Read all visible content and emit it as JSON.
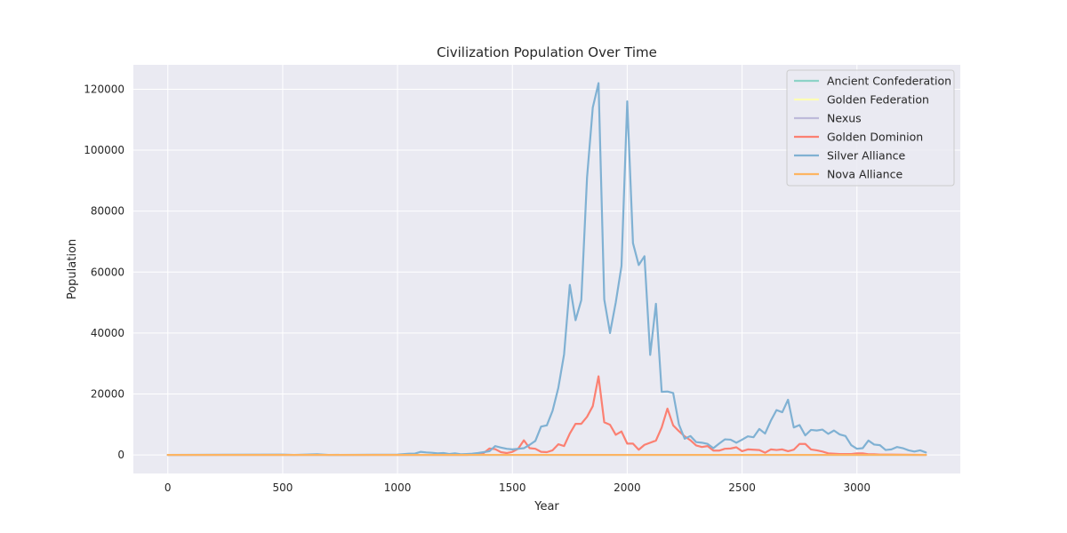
{
  "chart_data": {
    "type": "line",
    "title": "Civilization Population Over Time",
    "xlabel": "Year",
    "ylabel": "Population",
    "xlim": [
      -150,
      3450
    ],
    "ylim": [
      -6100,
      128000
    ],
    "xticks": [
      0,
      500,
      1000,
      1500,
      2000,
      2500,
      3000
    ],
    "yticks": [
      0,
      20000,
      40000,
      60000,
      80000,
      100000,
      120000
    ],
    "grid": true,
    "legend_position": "top-right",
    "plot_background": "#EAEAF2",
    "series": [
      {
        "name": "Ancient Confederation",
        "color": "#8DD3C7",
        "points": [
          [
            0,
            0
          ],
          [
            3300,
            0
          ]
        ]
      },
      {
        "name": "Golden Federation",
        "color": "#FFFFB3",
        "points": [
          [
            0,
            0
          ],
          [
            3300,
            0
          ]
        ]
      },
      {
        "name": "Nexus",
        "color": "#BEBADA",
        "points": [
          [
            0,
            0
          ],
          [
            3300,
            0
          ]
        ]
      },
      {
        "name": "Golden Dominion",
        "color": "#FB8072",
        "points": [
          [
            0,
            0
          ],
          [
            1300,
            0
          ],
          [
            1325,
            100
          ],
          [
            1350,
            300
          ],
          [
            1375,
            600
          ],
          [
            1400,
            2100
          ],
          [
            1425,
            1900
          ],
          [
            1450,
            900
          ],
          [
            1475,
            600
          ],
          [
            1500,
            1000
          ],
          [
            1525,
            2000
          ],
          [
            1550,
            4800
          ],
          [
            1575,
            2200
          ],
          [
            1600,
            2000
          ],
          [
            1625,
            1000
          ],
          [
            1650,
            900
          ],
          [
            1675,
            1500
          ],
          [
            1700,
            3500
          ],
          [
            1725,
            2900
          ],
          [
            1750,
            7000
          ],
          [
            1775,
            10200
          ],
          [
            1800,
            10200
          ],
          [
            1825,
            12500
          ],
          [
            1850,
            16000
          ],
          [
            1875,
            25800
          ],
          [
            1900,
            10700
          ],
          [
            1925,
            9900
          ],
          [
            1950,
            6600
          ],
          [
            1975,
            7700
          ],
          [
            2000,
            3700
          ],
          [
            2025,
            3700
          ],
          [
            2050,
            1700
          ],
          [
            2075,
            3300
          ],
          [
            2100,
            4000
          ],
          [
            2125,
            4700
          ],
          [
            2150,
            9000
          ],
          [
            2175,
            15200
          ],
          [
            2200,
            9700
          ],
          [
            2225,
            7800
          ],
          [
            2250,
            6100
          ],
          [
            2275,
            4800
          ],
          [
            2300,
            3100
          ],
          [
            2325,
            2600
          ],
          [
            2350,
            2900
          ],
          [
            2375,
            1400
          ],
          [
            2400,
            1400
          ],
          [
            2425,
            2000
          ],
          [
            2450,
            2100
          ],
          [
            2475,
            2500
          ],
          [
            2500,
            1200
          ],
          [
            2525,
            1800
          ],
          [
            2550,
            1700
          ],
          [
            2575,
            1600
          ],
          [
            2600,
            700
          ],
          [
            2625,
            1800
          ],
          [
            2650,
            1600
          ],
          [
            2675,
            1800
          ],
          [
            2700,
            1200
          ],
          [
            2725,
            1700
          ],
          [
            2750,
            3600
          ],
          [
            2775,
            3600
          ],
          [
            2800,
            1800
          ],
          [
            2825,
            1500
          ],
          [
            2850,
            1100
          ],
          [
            2875,
            500
          ],
          [
            2900,
            400
          ],
          [
            2925,
            300
          ],
          [
            2950,
            300
          ],
          [
            2975,
            300
          ],
          [
            3000,
            500
          ],
          [
            3025,
            500
          ],
          [
            3050,
            200
          ],
          [
            3075,
            200
          ],
          [
            3100,
            100
          ],
          [
            3150,
            100
          ],
          [
            3200,
            50
          ],
          [
            3300,
            0
          ]
        ]
      },
      {
        "name": "Silver Alliance",
        "color": "#80B1D3",
        "points": [
          [
            0,
            0
          ],
          [
            500,
            100
          ],
          [
            550,
            0
          ],
          [
            650,
            200
          ],
          [
            700,
            0
          ],
          [
            900,
            50
          ],
          [
            1000,
            100
          ],
          [
            1050,
            400
          ],
          [
            1075,
            400
          ],
          [
            1100,
            1000
          ],
          [
            1125,
            800
          ],
          [
            1150,
            700
          ],
          [
            1175,
            500
          ],
          [
            1200,
            600
          ],
          [
            1225,
            300
          ],
          [
            1250,
            500
          ],
          [
            1275,
            200
          ],
          [
            1300,
            300
          ],
          [
            1325,
            400
          ],
          [
            1350,
            600
          ],
          [
            1375,
            900
          ],
          [
            1400,
            1200
          ],
          [
            1425,
            2900
          ],
          [
            1450,
            2400
          ],
          [
            1475,
            2000
          ],
          [
            1500,
            1800
          ],
          [
            1525,
            2000
          ],
          [
            1550,
            2200
          ],
          [
            1575,
            3300
          ],
          [
            1600,
            4600
          ],
          [
            1625,
            9300
          ],
          [
            1650,
            9700
          ],
          [
            1675,
            14500
          ],
          [
            1700,
            22000
          ],
          [
            1725,
            33000
          ],
          [
            1750,
            55800
          ],
          [
            1775,
            44200
          ],
          [
            1800,
            50800
          ],
          [
            1825,
            91000
          ],
          [
            1850,
            114000
          ],
          [
            1875,
            122000
          ],
          [
            1900,
            51000
          ],
          [
            1925,
            40000
          ],
          [
            1950,
            50000
          ],
          [
            1975,
            62000
          ],
          [
            2000,
            116000
          ],
          [
            2025,
            69500
          ],
          [
            2050,
            62300
          ],
          [
            2075,
            65200
          ],
          [
            2100,
            32800
          ],
          [
            2125,
            49600
          ],
          [
            2150,
            20700
          ],
          [
            2175,
            20800
          ],
          [
            2200,
            20300
          ],
          [
            2225,
            10000
          ],
          [
            2250,
            5300
          ],
          [
            2275,
            6200
          ],
          [
            2300,
            4200
          ],
          [
            2325,
            4000
          ],
          [
            2350,
            3600
          ],
          [
            2375,
            2200
          ],
          [
            2400,
            3700
          ],
          [
            2425,
            5100
          ],
          [
            2450,
            5000
          ],
          [
            2475,
            4000
          ],
          [
            2500,
            5000
          ],
          [
            2525,
            6100
          ],
          [
            2550,
            5800
          ],
          [
            2575,
            8500
          ],
          [
            2600,
            7000
          ],
          [
            2625,
            11200
          ],
          [
            2650,
            14700
          ],
          [
            2675,
            14000
          ],
          [
            2700,
            18100
          ],
          [
            2725,
            9000
          ],
          [
            2750,
            9800
          ],
          [
            2775,
            6400
          ],
          [
            2800,
            8200
          ],
          [
            2825,
            8000
          ],
          [
            2850,
            8300
          ],
          [
            2875,
            6900
          ],
          [
            2900,
            8000
          ],
          [
            2925,
            6700
          ],
          [
            2950,
            6200
          ],
          [
            2975,
            3200
          ],
          [
            3000,
            2000
          ],
          [
            3025,
            2200
          ],
          [
            3050,
            4700
          ],
          [
            3075,
            3400
          ],
          [
            3100,
            3200
          ],
          [
            3125,
            1600
          ],
          [
            3150,
            1800
          ],
          [
            3175,
            2600
          ],
          [
            3200,
            2200
          ],
          [
            3225,
            1500
          ],
          [
            3250,
            1100
          ],
          [
            3275,
            1500
          ],
          [
            3300,
            800
          ]
        ]
      },
      {
        "name": "Nova Alliance",
        "color": "#FDB462",
        "points": [
          [
            0,
            0
          ],
          [
            3300,
            0
          ]
        ]
      }
    ]
  }
}
